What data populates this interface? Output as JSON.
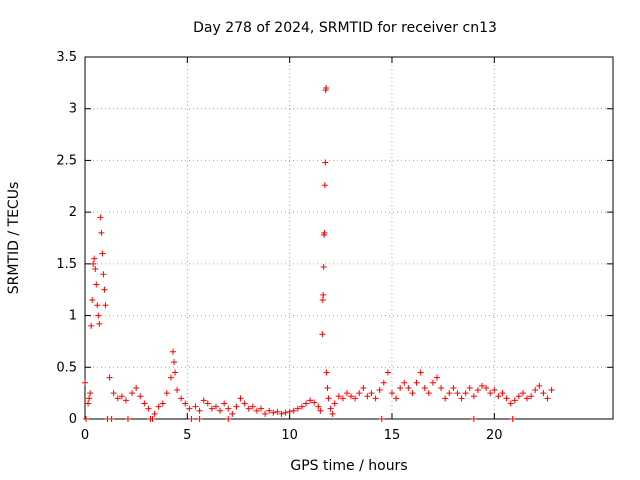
{
  "chart_data": {
    "type": "scatter",
    "title": "Day 278 of 2024, SRMTID for receiver cn13",
    "xlabel": "GPS time / hours",
    "ylabel": "SRMTID / TECUs",
    "xlim": [
      0,
      25.8
    ],
    "ylim": [
      0,
      3.5
    ],
    "grid": true,
    "marker": "+",
    "color": "#ff0000",
    "x_ticks": [
      0,
      5,
      10,
      15,
      20
    ],
    "x_tick_labels": [
      "0",
      "5",
      "10",
      "15",
      "20"
    ],
    "y_ticks": [
      0,
      0.5,
      1,
      1.5,
      2,
      2.5,
      3,
      3.5
    ],
    "y_tick_labels": [
      "0",
      "0.5",
      "1",
      "1.5",
      "2",
      "2.5",
      "3",
      "3.5"
    ],
    "series": [
      {
        "name": "SRMTID",
        "points": [
          [
            0.0,
            0.35
          ],
          [
            0.05,
            0.0
          ],
          [
            0.15,
            0.15
          ],
          [
            0.2,
            0.2
          ],
          [
            0.25,
            0.25
          ],
          [
            0.3,
            0.9
          ],
          [
            0.35,
            1.15
          ],
          [
            0.4,
            1.5
          ],
          [
            0.45,
            1.55
          ],
          [
            0.5,
            1.45
          ],
          [
            0.55,
            1.3
          ],
          [
            0.6,
            1.1
          ],
          [
            0.65,
            1.0
          ],
          [
            0.7,
            0.92
          ],
          [
            0.75,
            1.95
          ],
          [
            0.8,
            1.8
          ],
          [
            0.85,
            1.6
          ],
          [
            0.9,
            1.4
          ],
          [
            0.95,
            1.25
          ],
          [
            1.0,
            1.1
          ],
          [
            1.2,
            0.4
          ],
          [
            1.1,
            0.0
          ],
          [
            1.4,
            0.25
          ],
          [
            1.6,
            0.2
          ],
          [
            1.8,
            0.22
          ],
          [
            2.0,
            0.18
          ],
          [
            2.1,
            0.0
          ],
          [
            2.3,
            0.25
          ],
          [
            2.5,
            0.3
          ],
          [
            2.7,
            0.22
          ],
          [
            2.9,
            0.15
          ],
          [
            3.1,
            0.1
          ],
          [
            3.2,
            0.0
          ],
          [
            3.4,
            0.05
          ],
          [
            3.6,
            0.12
          ],
          [
            3.8,
            0.15
          ],
          [
            4.0,
            0.25
          ],
          [
            4.2,
            0.4
          ],
          [
            4.3,
            0.65
          ],
          [
            4.35,
            0.55
          ],
          [
            4.4,
            0.45
          ],
          [
            4.5,
            0.28
          ],
          [
            4.7,
            0.2
          ],
          [
            4.9,
            0.15
          ],
          [
            5.1,
            0.1
          ],
          [
            5.2,
            0.0
          ],
          [
            5.4,
            0.12
          ],
          [
            5.6,
            0.08
          ],
          [
            5.8,
            0.18
          ],
          [
            6.0,
            0.15
          ],
          [
            6.2,
            0.1
          ],
          [
            6.4,
            0.12
          ],
          [
            6.6,
            0.08
          ],
          [
            6.8,
            0.15
          ],
          [
            7.0,
            0.1
          ],
          [
            7.2,
            0.05
          ],
          [
            7.4,
            0.12
          ],
          [
            7.6,
            0.2
          ],
          [
            7.8,
            0.15
          ],
          [
            8.0,
            0.1
          ],
          [
            8.2,
            0.12
          ],
          [
            8.4,
            0.08
          ],
          [
            8.6,
            0.1
          ],
          [
            8.8,
            0.05
          ],
          [
            9.0,
            0.08
          ],
          [
            9.2,
            0.06
          ],
          [
            9.4,
            0.07
          ],
          [
            9.6,
            0.05
          ],
          [
            9.8,
            0.06
          ],
          [
            10.0,
            0.07
          ],
          [
            10.2,
            0.08
          ],
          [
            10.4,
            0.1
          ],
          [
            10.6,
            0.12
          ],
          [
            10.8,
            0.15
          ],
          [
            11.0,
            0.18
          ],
          [
            11.2,
            0.16
          ],
          [
            11.4,
            0.12
          ],
          [
            11.5,
            0.08
          ],
          [
            11.6,
            0.82
          ],
          [
            11.62,
            1.15
          ],
          [
            11.64,
            1.2
          ],
          [
            11.66,
            1.47
          ],
          [
            11.68,
            1.78
          ],
          [
            11.7,
            1.8
          ],
          [
            11.72,
            2.26
          ],
          [
            11.74,
            2.48
          ],
          [
            11.76,
            3.18
          ],
          [
            11.78,
            3.2
          ],
          [
            11.8,
            0.45
          ],
          [
            11.85,
            0.3
          ],
          [
            11.9,
            0.2
          ],
          [
            12.0,
            0.1
          ],
          [
            12.1,
            0.05
          ],
          [
            12.2,
            0.15
          ],
          [
            12.4,
            0.22
          ],
          [
            12.6,
            0.2
          ],
          [
            12.8,
            0.25
          ],
          [
            13.0,
            0.22
          ],
          [
            13.2,
            0.2
          ],
          [
            13.4,
            0.25
          ],
          [
            13.6,
            0.3
          ],
          [
            13.8,
            0.22
          ],
          [
            14.0,
            0.25
          ],
          [
            14.2,
            0.2
          ],
          [
            14.4,
            0.28
          ],
          [
            14.6,
            0.35
          ],
          [
            14.8,
            0.45
          ],
          [
            15.0,
            0.25
          ],
          [
            15.2,
            0.2
          ],
          [
            15.4,
            0.3
          ],
          [
            15.6,
            0.35
          ],
          [
            15.8,
            0.3
          ],
          [
            16.0,
            0.25
          ],
          [
            16.2,
            0.35
          ],
          [
            16.4,
            0.45
          ],
          [
            16.6,
            0.3
          ],
          [
            16.8,
            0.25
          ],
          [
            17.0,
            0.35
          ],
          [
            17.2,
            0.4
          ],
          [
            17.4,
            0.3
          ],
          [
            17.6,
            0.2
          ],
          [
            17.8,
            0.25
          ],
          [
            18.0,
            0.3
          ],
          [
            18.2,
            0.25
          ],
          [
            18.4,
            0.2
          ],
          [
            18.6,
            0.25
          ],
          [
            18.8,
            0.3
          ],
          [
            19.0,
            0.22
          ],
          [
            19.2,
            0.28
          ],
          [
            19.4,
            0.32
          ],
          [
            19.6,
            0.3
          ],
          [
            19.8,
            0.25
          ],
          [
            20.0,
            0.28
          ],
          [
            20.2,
            0.22
          ],
          [
            20.4,
            0.25
          ],
          [
            20.6,
            0.2
          ],
          [
            20.8,
            0.15
          ],
          [
            21.0,
            0.18
          ],
          [
            21.2,
            0.22
          ],
          [
            21.4,
            0.25
          ],
          [
            21.6,
            0.2
          ],
          [
            21.8,
            0.22
          ],
          [
            22.0,
            0.28
          ],
          [
            22.2,
            0.32
          ],
          [
            22.4,
            0.25
          ],
          [
            22.6,
            0.2
          ],
          [
            22.8,
            0.28
          ],
          [
            1.3,
            0.0
          ],
          [
            3.3,
            0.0
          ],
          [
            5.6,
            0.0
          ],
          [
            7.0,
            0.0
          ],
          [
            14.5,
            0.0
          ],
          [
            19.0,
            0.0
          ],
          [
            20.9,
            0.0
          ]
        ]
      }
    ]
  }
}
